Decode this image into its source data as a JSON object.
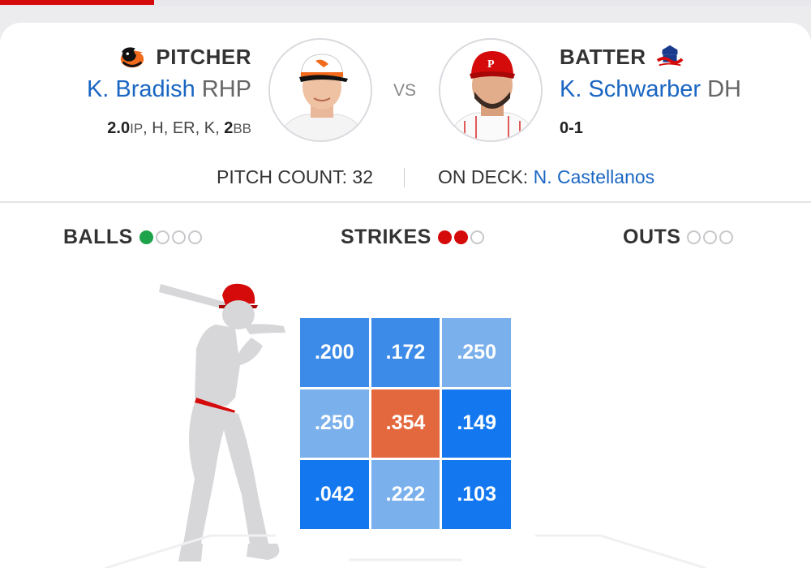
{
  "matchup": {
    "pitcher": {
      "role": "PITCHER",
      "name": "K. Bradish",
      "position": "RHP",
      "stats": {
        "ip_value": "2.0",
        "ip_unit": "IP",
        "mid": ", H, ER, K, ",
        "bb_value": "2",
        "bb_unit": "BB"
      },
      "team_logo_icon": "orioles-bird-icon"
    },
    "vs_label": "VS",
    "batter": {
      "role": "BATTER",
      "name": "K. Schwarber",
      "position": "DH",
      "stats": "0-1",
      "team_logo_icon": "phillies-logo-icon"
    }
  },
  "deck": {
    "pitch_count_label": "PITCH COUNT:",
    "pitch_count_value": "32",
    "on_deck_label": "ON DECK:",
    "on_deck_name": "N. Castellanos"
  },
  "count": {
    "balls_label": "BALLS",
    "balls": 1,
    "strikes_label": "STRIKES",
    "strikes": 2,
    "outs_label": "OUTS",
    "outs": 0
  },
  "strike_zone": {
    "cells": [
      ".200",
      ".172",
      ".250",
      ".250",
      ".354",
      ".149",
      ".042",
      ".222",
      ".103"
    ]
  },
  "colors": {
    "accent_red": "#d50a0a",
    "link_blue": "#1a66c2",
    "ball_green": "#1ea34a",
    "hot_zone": "#e4683e",
    "cold_zone": "#1378f0"
  }
}
